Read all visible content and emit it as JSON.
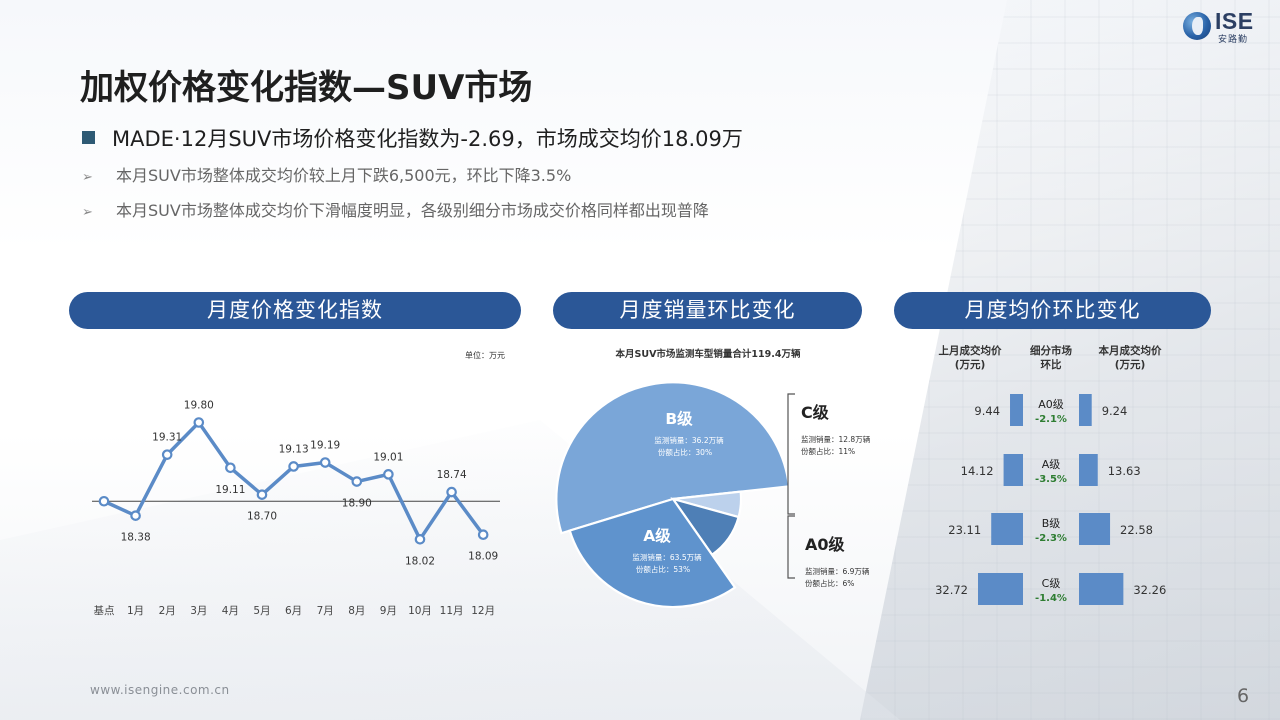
{
  "brand": {
    "logo_text": "ISE",
    "logo_cn": "安路勤"
  },
  "title": "加权价格变化指数—SUV市场",
  "bullets": {
    "main": "MADE·12月SUV市场价格变化指数为-2.69，市场成交均价18.09万",
    "sub1": "本月SUV市场整体成交均价较上月下跌6,500元，环比下降3.5%",
    "sub2": "本月SUV市场整体成交均价下滑幅度明显，各级别细分市场成交价格同样都出现普降"
  },
  "panels": {
    "price_index": "月度价格变化指数",
    "sales_change": "月度销量环比变化",
    "avg_price_change": "月度均价环比变化"
  },
  "chart_data": [
    {
      "type": "line",
      "unit_label": "单位：万元",
      "categories": [
        "基点",
        "1月",
        "2月",
        "3月",
        "4月",
        "5月",
        "6月",
        "7月",
        "8月",
        "9月",
        "10月",
        "11月",
        "12月"
      ],
      "values": [
        18.6,
        18.38,
        19.31,
        19.8,
        19.11,
        18.7,
        19.13,
        19.19,
        18.9,
        19.01,
        18.02,
        18.74,
        18.09
      ],
      "labels": [
        "",
        "18.38",
        "19.31",
        "19.80",
        "19.11",
        "18.70",
        "19.13",
        "19.19",
        "18.90",
        "19.01",
        "18.02",
        "18.74",
        "18.09"
      ],
      "label_positions": [
        "",
        "below",
        "above",
        "above",
        "below",
        "below",
        "above",
        "above",
        "below",
        "above",
        "below",
        "above",
        "below"
      ],
      "baseline": 18.6,
      "ylim": [
        17.4,
        20.6
      ],
      "color": "#5b8bc7"
    },
    {
      "type": "pie",
      "title": "本月SUV市场监测车型销量合计119.4万辆",
      "slices": [
        {
          "name": "A级",
          "sales_label": "监测销量：63.5万辆",
          "share_label": "份额占比：53%",
          "share": 53,
          "color": "#7aa6d8"
        },
        {
          "name": "A0级",
          "sales_label": "监测销量：6.9万辆",
          "share_label": "份额占比：6%",
          "share": 6,
          "color": "#bcd1ec"
        },
        {
          "name": "C级",
          "sales_label": "监测销量：12.8万辆",
          "share_label": "份额占比：11%",
          "share": 11,
          "color": "#4e7fb6"
        },
        {
          "name": "B级",
          "sales_label": "监测销量：36.2万辆",
          "share_label": "份额占比：30%",
          "share": 30,
          "color": "#5f93cd"
        }
      ]
    },
    {
      "type": "bar",
      "headers": {
        "left": "上月成交均价\n(万元)",
        "mid": "细分市场\n环比",
        "right": "本月成交均价\n(万元)"
      },
      "rows": [
        {
          "segment": "A0级",
          "change": "-2.1%",
          "prev": 9.44,
          "curr": 9.24,
          "prev_label": "9.44",
          "curr_label": "9.24"
        },
        {
          "segment": "A级",
          "change": "-3.5%",
          "prev": 14.12,
          "curr": 13.63,
          "prev_label": "14.12",
          "curr_label": "13.63"
        },
        {
          "segment": "B级",
          "change": "-2.3%",
          "prev": 23.11,
          "curr": 22.58,
          "prev_label": "23.11",
          "curr_label": "22.58"
        },
        {
          "segment": "C级",
          "change": "-1.4%",
          "prev": 32.72,
          "curr": 32.26,
          "prev_label": "32.72",
          "curr_label": "32.26"
        }
      ],
      "bar_color": "#5b8bc7",
      "change_color": "#2e7d32"
    }
  ],
  "footer": {
    "url": "www.isengine.com.cn",
    "page": "6"
  }
}
